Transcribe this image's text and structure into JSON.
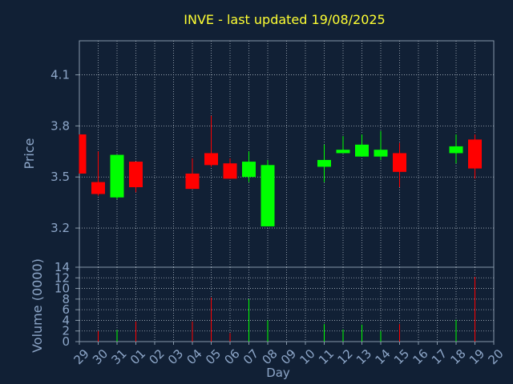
{
  "chart_data": [
    {
      "type": "candlestick",
      "title": "INVE - last updated 19/08/2025",
      "ylabel": "Price",
      "ylim": [
        2.97,
        4.3
      ],
      "yticks": [
        3.2,
        3.5,
        3.8,
        4.1
      ],
      "ytick_labels": [
        "3.2",
        "3.5",
        "3.8",
        "4.1"
      ],
      "grid": true,
      "categories": [
        "29",
        "30",
        "31",
        "01",
        "02",
        "03",
        "04",
        "05",
        "06",
        "07",
        "08",
        "09",
        "10",
        "11",
        "12",
        "13",
        "14",
        "15",
        "16",
        "17",
        "18",
        "19",
        "20"
      ],
      "candles": [
        {
          "x": "29",
          "open": 3.75,
          "close": 3.52,
          "high": 3.75,
          "low": 3.52
        },
        {
          "x": "30",
          "open": 3.47,
          "close": 3.4,
          "high": 3.65,
          "low": 3.39
        },
        {
          "x": "31",
          "open": 3.38,
          "close": 3.63,
          "high": 3.63,
          "low": 3.37
        },
        {
          "x": "01",
          "open": 3.59,
          "close": 3.44,
          "high": 3.59,
          "low": 3.41
        },
        {
          "x": "04",
          "open": 3.52,
          "close": 3.43,
          "high": 3.61,
          "low": 3.43
        },
        {
          "x": "05",
          "open": 3.64,
          "close": 3.57,
          "high": 3.86,
          "low": 3.56
        },
        {
          "x": "06",
          "open": 3.58,
          "close": 3.49,
          "high": 3.61,
          "low": 3.49
        },
        {
          "x": "07",
          "open": 3.5,
          "close": 3.59,
          "high": 3.65,
          "low": 3.47
        },
        {
          "x": "08",
          "open": 3.21,
          "close": 3.57,
          "high": 3.6,
          "low": 3.21
        },
        {
          "x": "11",
          "open": 3.56,
          "close": 3.6,
          "high": 3.69,
          "low": 3.47
        },
        {
          "x": "12",
          "open": 3.64,
          "close": 3.66,
          "high": 3.74,
          "low": 3.64
        },
        {
          "x": "13",
          "open": 3.62,
          "close": 3.69,
          "high": 3.75,
          "low": 3.62
        },
        {
          "x": "14",
          "open": 3.62,
          "close": 3.66,
          "high": 3.77,
          "low": 3.6
        },
        {
          "x": "15",
          "open": 3.64,
          "close": 3.53,
          "high": 3.7,
          "low": 3.44
        },
        {
          "x": "18",
          "open": 3.64,
          "close": 3.68,
          "high": 3.75,
          "low": 3.58
        },
        {
          "x": "19",
          "open": 3.72,
          "close": 3.55,
          "high": 3.75,
          "low": 3.49
        }
      ]
    },
    {
      "type": "bar",
      "ylabel": "Volume (0000)",
      "xlabel": "Day",
      "ylim": [
        0,
        14
      ],
      "yticks": [
        0,
        2,
        4,
        6,
        8,
        10,
        12,
        14
      ],
      "ytick_labels": [
        "0",
        "2",
        "4",
        "6",
        "8",
        "10",
        "12",
        "14"
      ],
      "categories": [
        "29",
        "30",
        "31",
        "01",
        "02",
        "03",
        "04",
        "05",
        "06",
        "07",
        "08",
        "09",
        "10",
        "11",
        "12",
        "13",
        "14",
        "15",
        "16",
        "17",
        "18",
        "19",
        "20"
      ],
      "bars": [
        {
          "x": "30",
          "value": 2.0,
          "direction": "down"
        },
        {
          "x": "31",
          "value": 2.2,
          "direction": "up"
        },
        {
          "x": "01",
          "value": 3.8,
          "direction": "down"
        },
        {
          "x": "04",
          "value": 3.8,
          "direction": "down"
        },
        {
          "x": "05",
          "value": 8.3,
          "direction": "down"
        },
        {
          "x": "06",
          "value": 1.6,
          "direction": "down"
        },
        {
          "x": "07",
          "value": 8.0,
          "direction": "up"
        },
        {
          "x": "08",
          "value": 4.0,
          "direction": "up"
        },
        {
          "x": "11",
          "value": 3.3,
          "direction": "up"
        },
        {
          "x": "12",
          "value": 2.3,
          "direction": "up"
        },
        {
          "x": "13",
          "value": 3.2,
          "direction": "up"
        },
        {
          "x": "14",
          "value": 2.0,
          "direction": "up"
        },
        {
          "x": "15",
          "value": 3.3,
          "direction": "down"
        },
        {
          "x": "18",
          "value": 4.1,
          "direction": "up"
        },
        {
          "x": "19",
          "value": 12.2,
          "direction": "down"
        }
      ]
    }
  ],
  "colors": {
    "background": "#112035",
    "frame": "#8899aa",
    "grid": "#aab4c0",
    "label": "#8da6c8",
    "title": "#ffff33",
    "up": "#00ff00",
    "down": "#ff0000"
  }
}
